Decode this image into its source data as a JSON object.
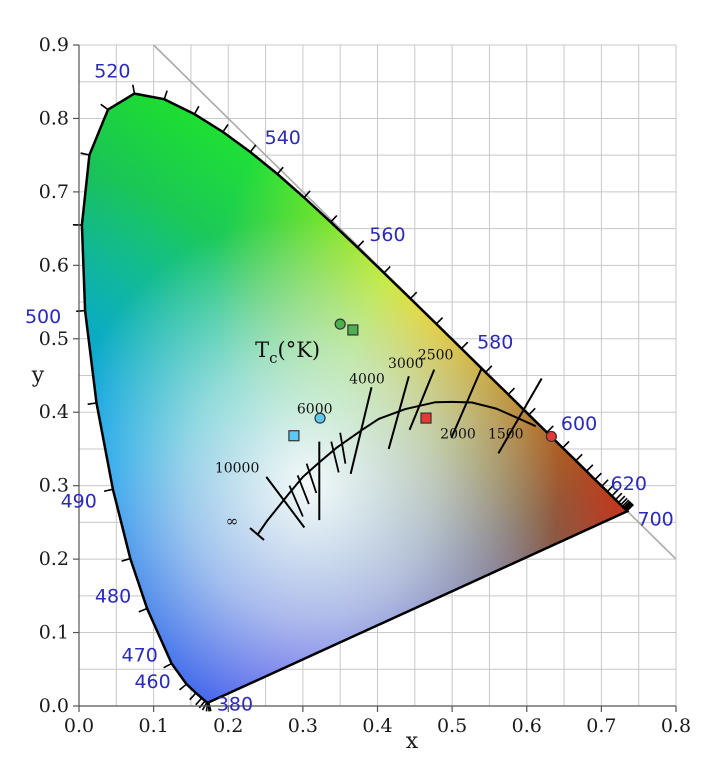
{
  "chart_data": {
    "type": "scatter",
    "title": "",
    "xlabel": "x",
    "ylabel": "y",
    "xlim": [
      0.0,
      0.8
    ],
    "ylim": [
      0.0,
      0.9
    ],
    "grid": true,
    "x_ticks": [
      "0.0",
      "0.1",
      "0.2",
      "0.3",
      "0.4",
      "0.5",
      "0.6",
      "0.7",
      "0.8"
    ],
    "y_ticks": [
      "0.0",
      "0.1",
      "0.2",
      "0.3",
      "0.4",
      "0.5",
      "0.6",
      "0.7",
      "0.8",
      "0.9"
    ],
    "spectral_locus": [
      [
        0.1741,
        0.005
      ],
      [
        0.1738,
        0.0049
      ],
      [
        0.1733,
        0.0048
      ],
      [
        0.1726,
        0.0048
      ],
      [
        0.1714,
        0.0051
      ],
      [
        0.1689,
        0.0069
      ],
      [
        0.1644,
        0.0109
      ],
      [
        0.1566,
        0.0177
      ],
      [
        0.144,
        0.0297
      ],
      [
        0.1241,
        0.0578
      ],
      [
        0.0913,
        0.1327
      ],
      [
        0.0687,
        0.2007
      ],
      [
        0.0454,
        0.295
      ],
      [
        0.0235,
        0.4127
      ],
      [
        0.0082,
        0.5384
      ],
      [
        0.0039,
        0.6548
      ],
      [
        0.0139,
        0.7502
      ],
      [
        0.0389,
        0.812
      ],
      [
        0.0743,
        0.8338
      ],
      [
        0.1142,
        0.8262
      ],
      [
        0.1547,
        0.8059
      ],
      [
        0.1929,
        0.7816
      ],
      [
        0.2296,
        0.7543
      ],
      [
        0.2658,
        0.7243
      ],
      [
        0.3016,
        0.6923
      ],
      [
        0.3373,
        0.6589
      ],
      [
        0.3731,
        0.6245
      ],
      [
        0.4087,
        0.5896
      ],
      [
        0.4441,
        0.5547
      ],
      [
        0.4788,
        0.5202
      ],
      [
        0.5125,
        0.4866
      ],
      [
        0.5448,
        0.4544
      ],
      [
        0.5752,
        0.4242
      ],
      [
        0.6029,
        0.3965
      ],
      [
        0.627,
        0.3725
      ],
      [
        0.6482,
        0.3514
      ],
      [
        0.6658,
        0.334
      ],
      [
        0.6801,
        0.3197
      ],
      [
        0.6915,
        0.3083
      ],
      [
        0.7006,
        0.2993
      ],
      [
        0.7079,
        0.292
      ],
      [
        0.714,
        0.2859
      ],
      [
        0.719,
        0.2809
      ],
      [
        0.723,
        0.277
      ],
      [
        0.726,
        0.274
      ],
      [
        0.7283,
        0.2717
      ],
      [
        0.73,
        0.27
      ],
      [
        0.7311,
        0.2689
      ],
      [
        0.732,
        0.268
      ],
      [
        0.7327,
        0.2673
      ],
      [
        0.7334,
        0.2666
      ],
      [
        0.734,
        0.266
      ],
      [
        0.7344,
        0.2656
      ],
      [
        0.7347,
        0.2653
      ]
    ],
    "wavelength_labels": [
      {
        "text": "380",
        "x": 0.174,
        "y": 0.005
      },
      {
        "text": "460",
        "x": 0.144,
        "y": 0.03
      },
      {
        "text": "470",
        "x": 0.124,
        "y": 0.058
      },
      {
        "text": "480",
        "x": 0.091,
        "y": 0.133
      },
      {
        "text": "490",
        "x": 0.045,
        "y": 0.295
      },
      {
        "text": "500",
        "x": 0.008,
        "y": 0.538
      },
      {
        "text": "520",
        "x": 0.074,
        "y": 0.834
      },
      {
        "text": "540",
        "x": 0.23,
        "y": 0.754
      },
      {
        "text": "560",
        "x": 0.373,
        "y": 0.625
      },
      {
        "text": "580",
        "x": 0.512,
        "y": 0.487
      },
      {
        "text": "600",
        "x": 0.627,
        "y": 0.373
      },
      {
        "text": "620",
        "x": 0.691,
        "y": 0.308
      },
      {
        "text": "700",
        "x": 0.735,
        "y": 0.265
      }
    ],
    "planckian_locus": [
      [
        0.2399,
        0.2342
      ],
      [
        0.252,
        0.252
      ],
      [
        0.2806,
        0.2883
      ],
      [
        0.3,
        0.312
      ],
      [
        0.3221,
        0.3318
      ],
      [
        0.3451,
        0.3516
      ],
      [
        0.3805,
        0.3768
      ],
      [
        0.402,
        0.391
      ],
      [
        0.4369,
        0.4041
      ],
      [
        0.4776,
        0.4137
      ],
      [
        0.5,
        0.414
      ],
      [
        0.5267,
        0.4133
      ],
      [
        0.559,
        0.405
      ],
      [
        0.586,
        0.393
      ],
      [
        0.612,
        0.381
      ]
    ],
    "cct_isotherms": [
      {
        "label": "10000",
        "x1": 0.251,
        "y1": 0.312,
        "x2": 0.302,
        "y2": 0.243
      },
      {
        "label": "6000",
        "x1": 0.322,
        "y1": 0.36,
        "x2": 0.322,
        "y2": 0.253
      },
      {
        "label": "4000",
        "x1": 0.392,
        "y1": 0.434,
        "x2": 0.364,
        "y2": 0.316
      },
      {
        "label": "3000",
        "x1": 0.442,
        "y1": 0.449,
        "x2": 0.415,
        "y2": 0.35
      },
      {
        "label": "2500",
        "x1": 0.476,
        "y1": 0.458,
        "x2": 0.443,
        "y2": 0.376
      },
      {
        "label": "2000",
        "x1": 0.54,
        "y1": 0.461,
        "x2": 0.499,
        "y2": 0.365
      },
      {
        "label": "1500",
        "x1": 0.62,
        "y1": 0.446,
        "x2": 0.562,
        "y2": 0.344
      }
    ],
    "tc_label": {
      "main": "T",
      "sub": "c",
      "rest": "(°K)",
      "x": 0.236,
      "y": 0.475
    },
    "infinity_label": {
      "text": "∞",
      "x": 0.205,
      "y": 0.245
    },
    "cct_label_positions": [
      {
        "label": "10000",
        "x": 0.182,
        "y": 0.318
      },
      {
        "label": "6000",
        "x": 0.292,
        "y": 0.398
      },
      {
        "label": "4000",
        "x": 0.362,
        "y": 0.439
      },
      {
        "label": "3000",
        "x": 0.414,
        "y": 0.46
      },
      {
        "label": "2500",
        "x": 0.454,
        "y": 0.472
      },
      {
        "label": "2000",
        "x": 0.484,
        "y": 0.364
      },
      {
        "label": "1500",
        "x": 0.548,
        "y": 0.364
      }
    ],
    "markers": [
      {
        "shape": "circle",
        "x": 0.35,
        "y": 0.52,
        "color": "#4caf50"
      },
      {
        "shape": "square",
        "x": 0.367,
        "y": 0.512,
        "color": "#4caf50"
      },
      {
        "shape": "square",
        "x": 0.288,
        "y": 0.368,
        "color": "#5bc8f5"
      },
      {
        "shape": "circle",
        "x": 0.323,
        "y": 0.392,
        "color": "#5bc8f5"
      },
      {
        "shape": "square",
        "x": 0.465,
        "y": 0.392,
        "color": "#e53935"
      },
      {
        "shape": "circle",
        "x": 0.633,
        "y": 0.367,
        "color": "#e53935"
      }
    ],
    "colors": {
      "wavelength_label": "#2b2bb8",
      "grid": "#c8c8c8",
      "locus": "#000000"
    }
  }
}
